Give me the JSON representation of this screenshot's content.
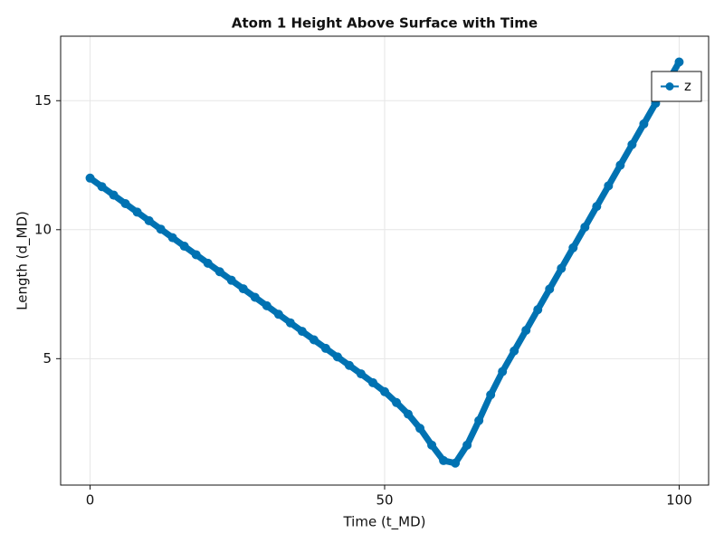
{
  "chart_data": {
    "type": "line",
    "title": "Atom 1 Height Above Surface with Time",
    "x_label": "Time (t_MD)",
    "y_label": "Length (d_MD)",
    "x": [
      0,
      2,
      4,
      6,
      8,
      10,
      12,
      14,
      16,
      18,
      20,
      22,
      24,
      26,
      28,
      30,
      32,
      34,
      36,
      38,
      40,
      42,
      44,
      46,
      48,
      50,
      52,
      54,
      56,
      58,
      60,
      62,
      64,
      66,
      68,
      70,
      72,
      74,
      76,
      78,
      80,
      82,
      84,
      86,
      88,
      90,
      92,
      94,
      96,
      98,
      100
    ],
    "series": [
      {
        "name": "z",
        "color": "#0072b2",
        "values": [
          12.0,
          11.67,
          11.34,
          11.01,
          10.68,
          10.35,
          10.02,
          9.69,
          9.36,
          9.03,
          8.7,
          8.37,
          8.04,
          7.71,
          7.38,
          7.05,
          6.72,
          6.39,
          6.06,
          5.73,
          5.4,
          5.07,
          4.74,
          4.41,
          4.07,
          3.72,
          3.3,
          2.85,
          2.3,
          1.65,
          1.05,
          0.95,
          1.65,
          2.6,
          3.6,
          4.5,
          5.3,
          6.1,
          6.9,
          7.7,
          8.5,
          9.3,
          10.1,
          10.9,
          11.7,
          12.5,
          13.3,
          14.1,
          14.9,
          15.7,
          16.5
        ]
      }
    ],
    "xlim": [
      -5,
      105
    ],
    "xticks": [
      0,
      50,
      100
    ],
    "ylim": [
      0.1,
      17.5
    ],
    "yticks": [
      5,
      10,
      15
    ],
    "grid": true,
    "markers": true,
    "legend": "top-right"
  }
}
